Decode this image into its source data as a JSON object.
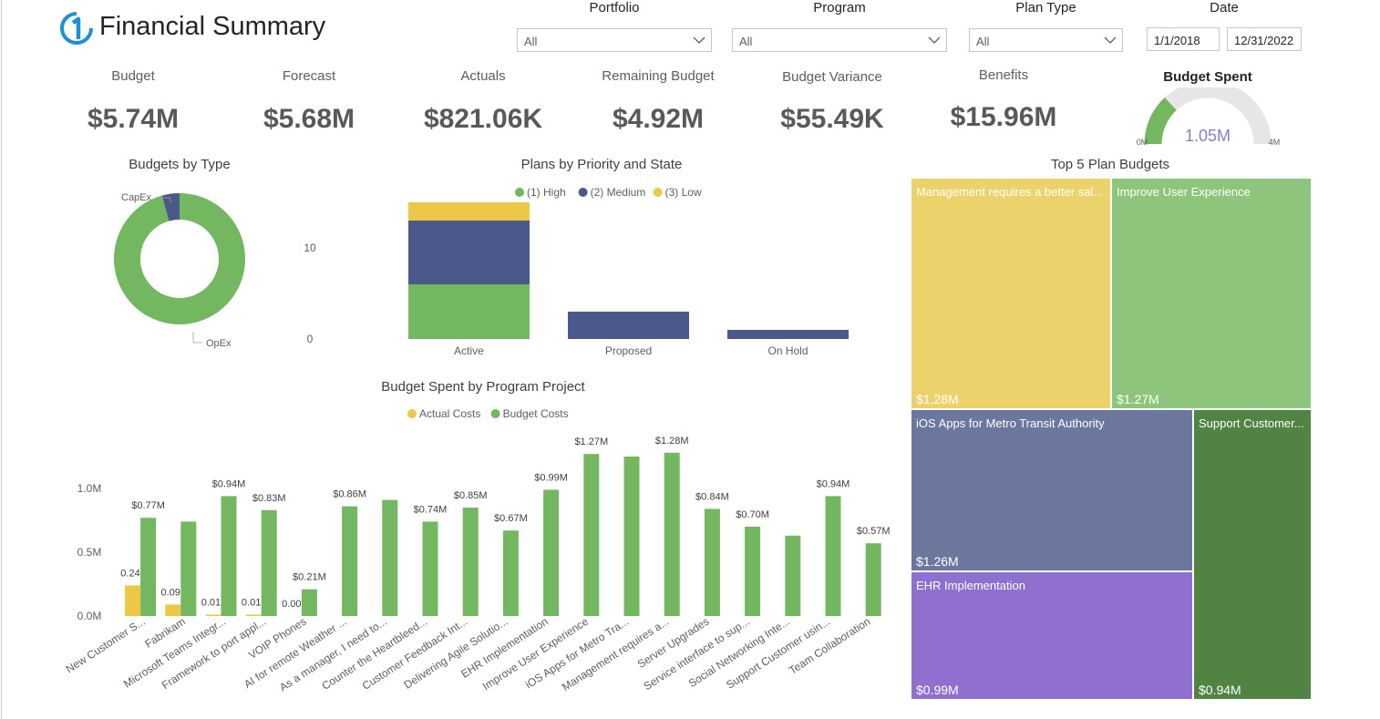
{
  "app": {
    "title": "Financial Summary"
  },
  "filters": {
    "portfolio": {
      "label": "Portfolio",
      "value": "All"
    },
    "program": {
      "label": "Program",
      "value": "All"
    },
    "plan_type": {
      "label": "Plan Type",
      "value": "All"
    },
    "date": {
      "label": "Date",
      "start": "1/1/2018",
      "end": "12/31/2022"
    }
  },
  "kpis": [
    {
      "label": "Budget",
      "value": "$5.74M"
    },
    {
      "label": "Forecast",
      "value": "$5.68M"
    },
    {
      "label": "Actuals",
      "value": "$821.06K"
    },
    {
      "label": "Remaining Budget",
      "value": "$4.92M"
    },
    {
      "label": "Budget Variance",
      "value": "$55.49K"
    },
    {
      "label": "Benefits",
      "value": "$15.96M"
    }
  ],
  "colors": {
    "green": "#73b761",
    "navy": "#4a588a",
    "yellow": "#ecc846",
    "gauge_track": "#e6e6e6",
    "gauge_text": "#8d7ac4"
  },
  "chart_data": [
    {
      "id": "budget_spent",
      "type": "gauge",
      "title": "Budget Spent",
      "value": 1.05,
      "value_label": "1.05M",
      "min": 0,
      "max": 4,
      "min_label": "0M",
      "max_label": "4M"
    },
    {
      "id": "budgets_by_type",
      "type": "pie",
      "title": "Budgets by Type",
      "labels": [
        "CapEx",
        "OpEx"
      ],
      "values": [
        0.25,
        5.49
      ],
      "colors": [
        "#4a588a",
        "#73b761"
      ]
    },
    {
      "id": "plans_by_priority_state",
      "type": "bar",
      "stacked": true,
      "title": "Plans by Priority and State",
      "categories": [
        "Active",
        "Proposed",
        "On Hold"
      ],
      "yticks": [
        "0",
        "10"
      ],
      "ylim": [
        0,
        16
      ],
      "series": [
        {
          "name": "(1) High",
          "color": "#73b761",
          "values": [
            6,
            0,
            0
          ]
        },
        {
          "name": "(2) Medium",
          "color": "#4a588a",
          "values": [
            7,
            3,
            1
          ]
        },
        {
          "name": "(3) Low",
          "color": "#ecc846",
          "values": [
            2,
            0,
            0
          ]
        }
      ],
      "legend_position": "top-center"
    },
    {
      "id": "budget_spent_by_program_project",
      "type": "bar",
      "title": "Budget Spent by Program Project",
      "categories": [
        "New Customer S...",
        "Fabrikam",
        "Microsoft Teams Integr...",
        "Framework to port appl...",
        "VOIP Phones",
        "AI for remote Weather ...",
        "As a manager, I need to...",
        "Counter the Heartbleed...",
        "Customer Feedback Int...",
        "Delivering Agile Solutio...",
        "EHR Implementation",
        "Improve User Experience",
        "iOS Apps for Metro Tra...",
        "Management requires a...",
        "Server Upgrades",
        "Service interface to sup...",
        "Social Networking Inte...",
        "Support Customer usin...",
        "Team Collaboration"
      ],
      "yticks": [
        "0.0M",
        "0.5M",
        "1.0M"
      ],
      "ylim": [
        0,
        1.4
      ],
      "series": [
        {
          "name": "Actual Costs",
          "color": "#ecc846",
          "values": [
            0.24,
            0.09,
            0.01,
            0.01,
            0.0,
            0,
            0,
            0,
            0,
            0,
            0,
            0,
            0,
            0,
            0,
            0,
            0,
            0,
            0
          ],
          "labels": [
            "0.24M",
            "0.09M",
            "0.01M",
            "0.01M",
            "0.00M",
            "",
            "",
            "",
            "",
            "",
            "",
            "",
            "",
            "",
            "",
            "",
            "",
            "",
            ""
          ]
        },
        {
          "name": "Budget Costs",
          "color": "#73b761",
          "values": [
            0.77,
            0.74,
            0.94,
            0.83,
            0.21,
            0.86,
            0.91,
            0.74,
            0.85,
            0.67,
            0.99,
            1.27,
            1.25,
            1.28,
            0.84,
            0.7,
            0.63,
            0.94,
            0.57
          ],
          "labels": [
            "$0.77M",
            "",
            "$0.94M",
            "$0.83M",
            "$0.21M",
            "$0.86M",
            "",
            "$0.74M",
            "$0.85M",
            "$0.67M",
            "$0.99M",
            "$1.27M",
            "",
            "$1.28M",
            "$0.84M",
            "$0.70M",
            "",
            "$0.94M",
            "$0.57M"
          ]
        }
      ],
      "legend_position": "top-center"
    },
    {
      "id": "top5_plan_budgets",
      "type": "treemap",
      "title": "Top 5 Plan Budgets",
      "items": [
        {
          "name": "Management requires a better sal...",
          "value": 1.28,
          "value_label": "$1.28M",
          "color": "#ecd26a"
        },
        {
          "name": "Improve User Experience",
          "value": 1.27,
          "value_label": "$1.27M",
          "color": "#8ec57c"
        },
        {
          "name": "iOS Apps for Metro Transit Authority",
          "value": 1.26,
          "value_label": "$1.26M",
          "color": "#6c779e"
        },
        {
          "name": "EHR Implementation",
          "value": 0.99,
          "value_label": "$0.99M",
          "color": "#8f70cf"
        },
        {
          "name": "Support Customer...",
          "value": 0.94,
          "value_label": "$0.94M",
          "color": "#518342"
        }
      ]
    }
  ]
}
